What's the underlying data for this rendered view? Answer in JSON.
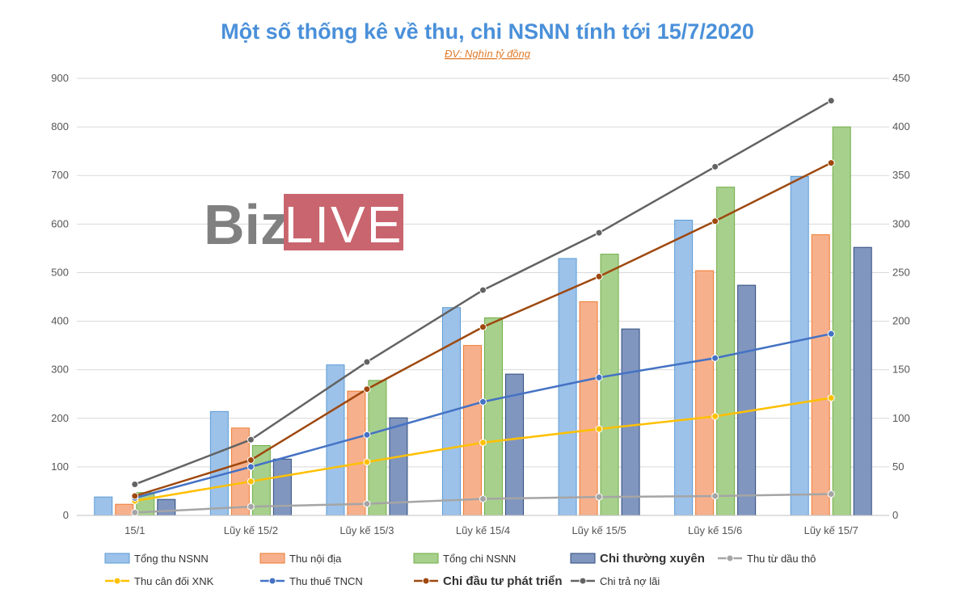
{
  "chart_data": {
    "type": "bar",
    "title": "Một số thống kê về thu, chi NSNN tính tới 15/7/2020",
    "subtitle": "ĐV: Nghìn tỷ đồng",
    "categories": [
      "15/1",
      "Lũy kế 15/2",
      "Lũy kế 15/3",
      "Lũy kế 15/4",
      "Lũy kế 15/5",
      "Lũy kế 15/6",
      "Lũy kế 15/7"
    ],
    "ylim": [
      0,
      900
    ],
    "y2lim": [
      0,
      450
    ],
    "yticks": [
      "0",
      "100",
      "200",
      "300",
      "400",
      "500",
      "600",
      "700",
      "800",
      "900"
    ],
    "y2ticks": [
      "0",
      "50",
      "100",
      "150",
      "200",
      "250",
      "300",
      "350",
      "400",
      "450"
    ],
    "grid": true,
    "legend_position": "bottom",
    "bar_series": [
      {
        "name": "Tổng thu NSNN",
        "color": "#9cc2ea",
        "stroke": "#5b9bd5",
        "values": [
          38,
          214,
          310,
          428,
          529,
          608,
          698
        ]
      },
      {
        "name": "Thu nội địa",
        "color": "#f7b08c",
        "stroke": "#ed7d31",
        "values": [
          23,
          180,
          256,
          350,
          440,
          504,
          578
        ]
      },
      {
        "name": "Tổng chi NSNN",
        "color": "#a7d08c",
        "stroke": "#70ad47",
        "values": [
          47,
          144,
          278,
          407,
          538,
          676,
          800
        ]
      },
      {
        "name": "Chi thường xuyên",
        "color": "#8096bf",
        "stroke": "#2f4b7c",
        "values": [
          33,
          116,
          201,
          291,
          384,
          474,
          552
        ]
      }
    ],
    "line_series": [
      {
        "name": "Thu từ dầu thô",
        "color": "#a5a5a5",
        "axis": "secondary",
        "values": [
          3,
          9,
          12,
          17,
          19,
          20,
          22
        ]
      },
      {
        "name": "Thu cân đối XNK",
        "color": "#ffc000",
        "axis": "secondary",
        "values": [
          15,
          35,
          55,
          75,
          89,
          102,
          121
        ]
      },
      {
        "name": "Thu thuế TNCN",
        "color": "#4472c4",
        "axis": "secondary",
        "values": [
          18,
          50,
          83,
          117,
          142,
          162,
          187
        ]
      },
      {
        "name": "Chi đầu tư phát triển",
        "color": "#9e480e",
        "axis": "secondary",
        "values": [
          20,
          57,
          130,
          194,
          246,
          303,
          363
        ]
      },
      {
        "name": "Chi trả nợ lãi",
        "color": "#636363",
        "axis": "secondary",
        "values": [
          32,
          78,
          158,
          232,
          291,
          359,
          427
        ]
      }
    ],
    "legend": [
      {
        "label": "Tổng thu NSNN",
        "kind": "bar",
        "bold": false
      },
      {
        "label": "Thu nội địa",
        "kind": "bar",
        "bold": false
      },
      {
        "label": "Tổng chi NSNN",
        "kind": "bar",
        "bold": false
      },
      {
        "label": "Chi thường xuyên",
        "kind": "bar",
        "bold": true
      },
      {
        "label": "Thu từ dầu thô",
        "kind": "line",
        "bold": false
      },
      {
        "label": "Thu cân đối XNK",
        "kind": "line",
        "bold": false
      },
      {
        "label": "Thu thuế TNCN",
        "kind": "line",
        "bold": false
      },
      {
        "label": "Chi đầu tư phát triển",
        "kind": "line",
        "bold": true
      },
      {
        "label": "Chi trả nợ lãi",
        "kind": "line",
        "bold": false
      }
    ]
  },
  "watermark": {
    "biz": "Biz",
    "live": "LIVE",
    "live_bg": "#c9656e"
  }
}
